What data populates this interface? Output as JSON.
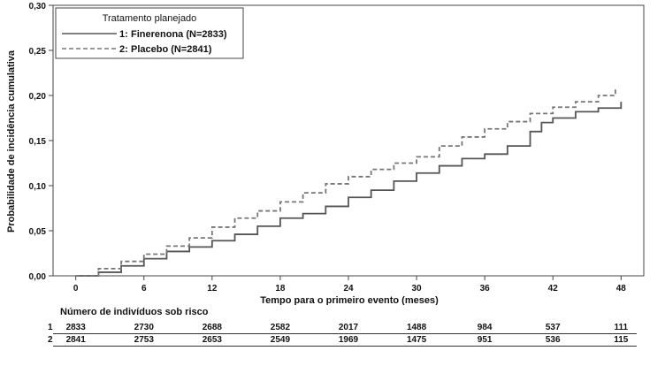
{
  "chart_data": {
    "type": "line",
    "ylabel": "Probabilidade de incidência cumulativa",
    "xlabel": "Tempo para o primeiro evento (meses)",
    "xlim": [
      -2,
      50
    ],
    "ylim": [
      0,
      0.3
    ],
    "x_ticks": [
      "0",
      "6",
      "12",
      "18",
      "24",
      "30",
      "36",
      "42",
      "48"
    ],
    "y_ticks": [
      "0,00",
      "0,05",
      "0,10",
      "0,15",
      "0,20",
      "0,25",
      "0,30"
    ],
    "grid": false,
    "legend": {
      "title": "Tratamento planejado",
      "position": "top-left",
      "entries": [
        {
          "prefix": "1:",
          "name": "Finerenona (N=2833)"
        },
        {
          "prefix": "2:",
          "name": "Placebo (N=2841)"
        }
      ]
    },
    "series": [
      {
        "name": "Finerenona (N=2833)",
        "style": "solid",
        "color": "#555555",
        "x": [
          0,
          2,
          4,
          6,
          8,
          10,
          12,
          14,
          16,
          18,
          20,
          22,
          24,
          26,
          28,
          30,
          32,
          34,
          36,
          38,
          40,
          41,
          42,
          44,
          46,
          48
        ],
        "y": [
          0,
          0.004,
          0.011,
          0.019,
          0.027,
          0.032,
          0.039,
          0.046,
          0.055,
          0.064,
          0.069,
          0.077,
          0.087,
          0.095,
          0.105,
          0.114,
          0.122,
          0.13,
          0.135,
          0.144,
          0.16,
          0.17,
          0.175,
          0.182,
          0.186,
          0.193
        ]
      },
      {
        "name": "Placebo (N=2841)",
        "style": "dashed",
        "color": "#777777",
        "x": [
          0,
          2,
          4,
          6,
          8,
          10,
          12,
          14,
          16,
          18,
          20,
          22,
          24,
          26,
          28,
          30,
          32,
          34,
          36,
          38,
          40,
          42,
          44,
          46,
          47.5
        ],
        "y": [
          0,
          0.008,
          0.016,
          0.024,
          0.033,
          0.042,
          0.054,
          0.064,
          0.072,
          0.082,
          0.092,
          0.102,
          0.11,
          0.118,
          0.125,
          0.132,
          0.144,
          0.154,
          0.163,
          0.171,
          0.18,
          0.187,
          0.193,
          0.2,
          0.208
        ]
      }
    ]
  },
  "risk_table": {
    "title": "Número de indivíduos sob risco",
    "rows": [
      {
        "id": "1",
        "values": [
          "2833",
          "2730",
          "2688",
          "2582",
          "2017",
          "1488",
          "984",
          "537",
          "111"
        ]
      },
      {
        "id": "2",
        "values": [
          "2841",
          "2753",
          "2653",
          "2549",
          "1969",
          "1475",
          "951",
          "536",
          "115"
        ]
      }
    ]
  }
}
